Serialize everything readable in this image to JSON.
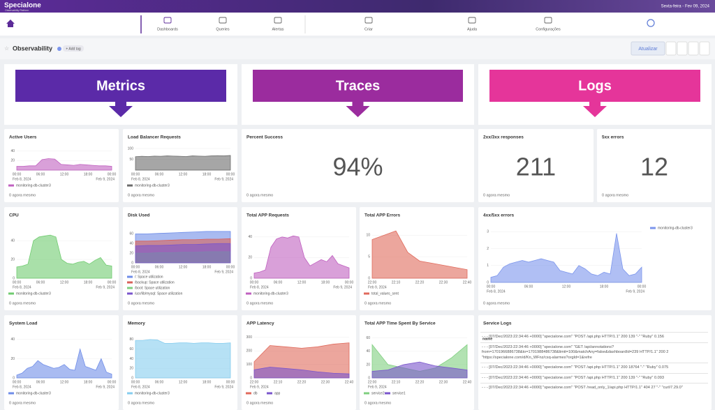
{
  "header": {
    "brand": "Specialone",
    "tagline": "Observability Platform",
    "date": "Sexta-feira - Fev 09, 2024"
  },
  "nav": [
    "Dashboards",
    "Queries",
    "Alertas",
    "Criar",
    "Ajuda",
    "Configurações"
  ],
  "toolbar": {
    "title": "Observability",
    "tag": "+ Add tag",
    "refresh": "Atualizar"
  },
  "banners": [
    "Metrics",
    "Traces",
    "Logs"
  ],
  "panels": [
    {
      "title": "Active Users",
      "footer": "0 agora mesmo",
      "chart": {
        "ylim": [
          0,
          45
        ],
        "yticks": [
          20,
          40
        ],
        "xticks": [
          "00:00",
          "06:00",
          "12:00",
          "18:00",
          "00:00"
        ],
        "date_start": "Feb 8, 2024",
        "date_end": "Feb 9, 2024",
        "series": [
          {
            "name": "monitoring-db-cluster3",
            "color": "#c061c0",
            "values": [
              8,
              8,
              9,
              9,
              22,
              24,
              23,
              12,
              11,
              10,
              12,
              11,
              10,
              9,
              9,
              8
            ]
          }
        ]
      }
    },
    {
      "title": "Load Balancer Requests",
      "footer": "0 agora mesmo",
      "chart": {
        "ylim": [
          0,
          100
        ],
        "yticks": [
          50,
          100
        ],
        "xticks": [
          "00:00",
          "06:00",
          "12:00",
          "18:00",
          "00:00"
        ],
        "date_start": "Feb 8, 2024",
        "date_end": "Feb 9, 2024",
        "series": [
          {
            "name": "monitoring-db-cluster3",
            "color": "#6b6b6b",
            "values": [
              62,
              64,
              63,
              65,
              64,
              66,
              65,
              64,
              63,
              66,
              65,
              64,
              66,
              67,
              66,
              68
            ]
          }
        ]
      }
    },
    {
      "title": "Percent Success",
      "footer": "0 agora mesmo",
      "stat": "94%"
    },
    {
      "title": "2xx/3xx responses",
      "footer": "0 agora mesmo",
      "stat": "211"
    },
    {
      "title": "5xx errors",
      "footer": "0 agora mesmo",
      "stat": "12"
    },
    {
      "title": "CPU",
      "footer": "0 agora mesmo",
      "chart": {
        "ylim": [
          0,
          55
        ],
        "yticks": [
          0,
          20,
          40
        ],
        "xticks": [
          "00:00",
          "06:00",
          "12:00",
          "18:00",
          "00:00"
        ],
        "date_start": "Feb 8, 2024",
        "date_end": "Feb 9, 2024",
        "series": [
          {
            "name": "monitoring-db-cluster3",
            "color": "#6fcb6f",
            "values": [
              12,
              13,
              15,
              40,
              44,
              45,
              46,
              44,
              20,
              16,
              15,
              17,
              18,
              15,
              19,
              22,
              14,
              13
            ]
          }
        ]
      }
    },
    {
      "title": "Disk Used",
      "footer": "0 agora mesmo",
      "chart": {
        "ylim": [
          0,
          75
        ],
        "yticks": [
          0,
          20,
          40,
          60
        ],
        "xticks": [
          "00:00",
          "06:00",
          "12:00",
          "18:00",
          "00:00"
        ],
        "date_start": "Feb 8, 2024",
        "date_end": "Feb 9, 2024",
        "series": [
          {
            "name": "/: Space utilization",
            "color": "#6f8de8",
            "values": [
              60,
              60,
              61,
              62,
              63,
              64,
              65,
              65,
              65
            ]
          },
          {
            "name": "/backup: Space utilization",
            "color": "#d9605a",
            "values": [
              45,
              45,
              46,
              47,
              48,
              48,
              49,
              49,
              50
            ]
          },
          {
            "name": "/boot: Space utilization",
            "color": "#7fcf7f",
            "values": [
              20,
              20,
              21,
              21,
              22,
              22,
              23,
              23,
              23
            ]
          },
          {
            "name": "/usr/lib/mysql: Space utilization",
            "color": "#7a55cc",
            "values": [
              35,
              36,
              36,
              37,
              38,
              38,
              39,
              40,
              40
            ]
          }
        ]
      }
    },
    {
      "title": "Total APP Requests",
      "footer": "0 agora mesmo",
      "chart": {
        "ylim": [
          0,
          50
        ],
        "yticks": [
          0,
          20,
          40
        ],
        "xticks": [
          "00:00",
          "06:00",
          "12:00",
          "18:00",
          "00:00"
        ],
        "date_start": "Feb 8, 2024",
        "date_end": "Feb 9, 2024",
        "series": [
          {
            "name": "monitoring-db-cluster3",
            "color": "#c061c0",
            "values": [
              5,
              6,
              8,
              30,
              38,
              40,
              39,
              41,
              40,
              20,
              12,
              15,
              18,
              16,
              22,
              14,
              12,
              10
            ]
          }
        ]
      }
    },
    {
      "title": "Total APP Errors",
      "footer": "0 agora mesmo",
      "chart": {
        "ylim": [
          0,
          12
        ],
        "yticks": [
          0,
          5,
          10
        ],
        "xticks": [
          "22:00",
          "22:10",
          "22:20",
          "22:30",
          "22:40"
        ],
        "date_start": "Feb 9, 2024",
        "series": [
          {
            "name": "total_values_sent",
            "color": "#e06a5c",
            "values": [
              9,
              10,
              11,
              6,
              4,
              3.5,
              3,
              2.5,
              2
            ]
          }
        ]
      }
    },
    {
      "title": "4xx/5xx errors",
      "footer": "0 agora mesmo",
      "chart": {
        "legend": "right",
        "ylim": [
          0,
          3.3
        ],
        "yticks": [
          0,
          1,
          2,
          3
        ],
        "xticks": [
          "00:00",
          "06:00",
          "12:00",
          "18:00",
          "00:00"
        ],
        "date_start": "Feb 8, 2024",
        "date_end": "Feb 9, 2024",
        "series": [
          {
            "name": "monitoring-db-cluster3",
            "color": "#7b95ec",
            "values": [
              0.3,
              0.4,
              0.9,
              1.1,
              1.2,
              1.3,
              1.2,
              1.3,
              1.4,
              1.3,
              1.2,
              0.7,
              0.6,
              0.5,
              1.0,
              0.8,
              0.5,
              0.4,
              0.6,
              0.5,
              2.9,
              0.8,
              0.4,
              0.5,
              0.9
            ]
          }
        ]
      }
    },
    {
      "title": "System Load",
      "footer": "0 agora mesmo",
      "chart": {
        "ylim": [
          0,
          45
        ],
        "yticks": [
          0,
          20,
          40
        ],
        "xticks": [
          "00:00",
          "06:00",
          "12:00",
          "18:00",
          "00:00"
        ],
        "date_start": "Feb 8, 2024",
        "date_end": "Feb 9, 2024",
        "series": [
          {
            "name": "monitoring-db-cluster3",
            "color": "#6f8de8",
            "values": [
              3,
              5,
              10,
              12,
              18,
              14,
              12,
              10,
              11,
              14,
              9,
              8,
              30,
              12,
              10,
              8,
              20,
              6,
              4
            ]
          }
        ]
      }
    },
    {
      "title": "Memory",
      "footer": "0 agora mesmo",
      "chart": {
        "ylim": [
          0,
          90
        ],
        "yticks": [
          0,
          20,
          40,
          60,
          80
        ],
        "xticks": [
          "00:00",
          "06:00",
          "12:00",
          "18:00",
          "00:00"
        ],
        "date_start": "Feb 8, 2024",
        "date_end": "Feb 9, 2024",
        "series": [
          {
            "name": "monitoring-db-cluster3",
            "color": "#86cdef",
            "values": [
              78,
              78,
              80,
              79,
              72,
              72,
              73,
              73,
              72,
              73,
              73,
              72,
              72,
              73
            ]
          }
        ]
      }
    },
    {
      "title": "APP Latency",
      "footer": "0 agora mesmo",
      "chart": {
        "ylim": [
          0,
          320
        ],
        "yticks": [
          0,
          100,
          200,
          300
        ],
        "xticks": [
          "22:00",
          "22:10",
          "22:20",
          "22:30",
          "22:40"
        ],
        "date_start": "Feb 9, 2024",
        "series": [
          {
            "name": "db",
            "color": "#e06a5c",
            "values": [
              120,
              240,
              230,
              220,
              230,
              250,
              260
            ]
          },
          {
            "name": "app",
            "color": "#7a55cc",
            "values": [
              60,
              80,
              70,
              60,
              45,
              35,
              30
            ]
          }
        ]
      }
    },
    {
      "title": "Total APP Time Spent By Service",
      "footer": "0 agora mesmo",
      "chart": {
        "ylim": [
          0,
          65
        ],
        "yticks": [
          0,
          20,
          40,
          60
        ],
        "xticks": [
          "22:00",
          "22:10",
          "22:20",
          "22:30",
          "22:40"
        ],
        "date_start": "Feb 9, 2024",
        "series": [
          {
            "name": "service2",
            "color": "#7fcf7f",
            "values": [
              50,
              20,
              15,
              10,
              15,
              30,
              50
            ]
          },
          {
            "name": "service1",
            "color": "#7a55cc",
            "values": [
              10,
              12,
              20,
              24,
              18,
              15,
              12
            ]
          }
        ]
      }
    },
    {
      "title": "Service Logs",
      "logs": {
        "header": "name",
        "rows": [
          "- - - [07/Dec/2023:22:34:46 +0000] \"specialone.com\" \"POST /api.php HTTP/1.1\" 200 139 \"-\" \"Ruby\" 0.156",
          "- - - [07/Dec/2023:22:34:46 +0000] \"specialone.com\" \"GET /api/annotations?from=1701966886738&to=1701988486738&limit=100&matchAny=false&dashboardId=239 HTTP/1.1\" 200 2 \"https://specialone.com/d/Kn_WFnz/csq-alarmes?orgId=1&refre",
          "- - - [07/Dec/2023:22:34:46 +0000] \"specialone.com\" \"POST /api.php HTTP/1.1\" 200 18764 \"-\" \"Ruby\" 0.075",
          "- - - [07/Dec/2023:22:34:46 +0000] \"specialone.com\" \"POST /api.php HTTP/1.1\" 200 139 \"-\" \"Ruby\" 0.093",
          "- - - [07/Dec/2023:22:34:46 +0000] \"specialone.com\" \"POST /read_only_1/api.php HTTP/1.1\" 404 27 \"-\" \"curl/7.29.0\""
        ]
      }
    }
  ]
}
